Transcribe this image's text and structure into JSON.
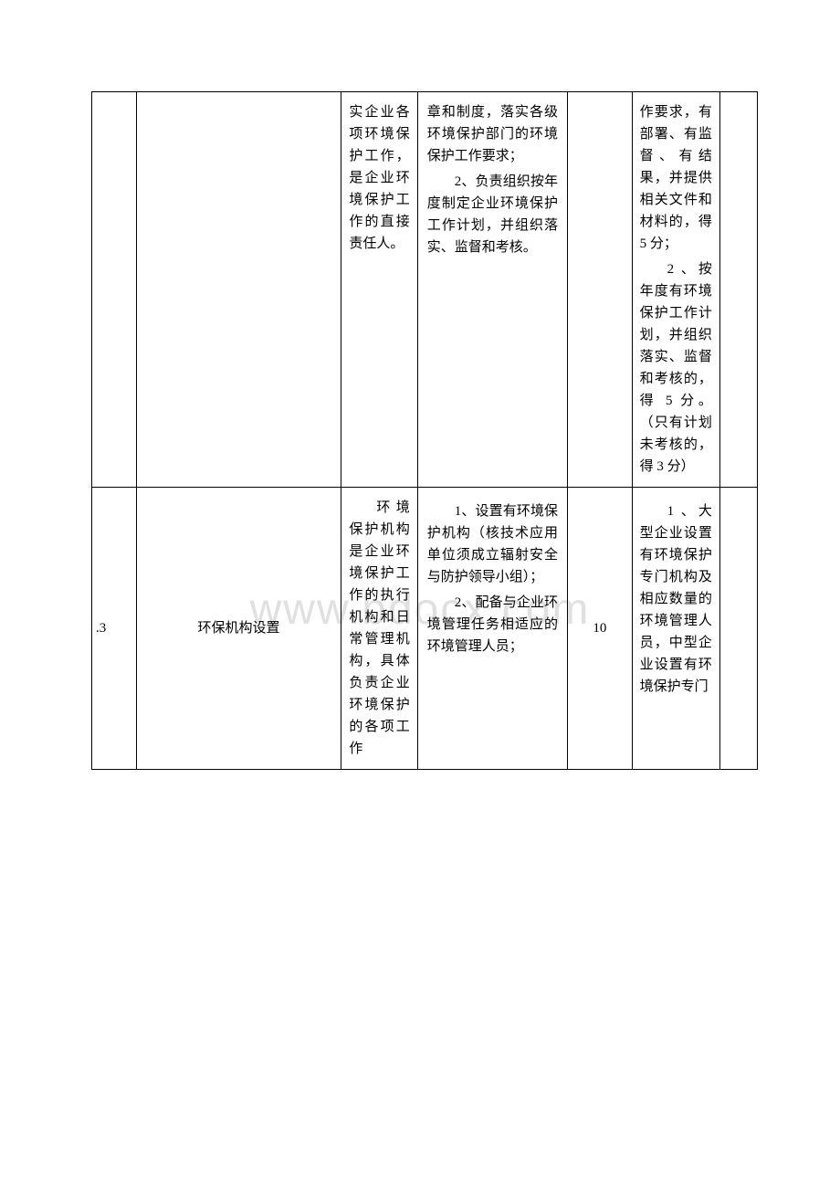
{
  "watermark": "www.bdocx.com",
  "table": {
    "border_color": "#000000",
    "background_color": "#ffffff",
    "text_color": "#000000",
    "font_size": 15,
    "columns_width": [
      38,
      175,
      65,
      128,
      55,
      75,
      32
    ],
    "rows": [
      {
        "col1": "",
        "col2": "",
        "col3": "实企业各项环境保护工作，是企业环境保护工作的直接责任人。",
        "col4_p1": "章和制度，落实各级环境保护部门的环境保护工作要求；",
        "col4_p2": "2、负责组织按年度制定企业环境保护工作计划，并组织落实、监督和考核。",
        "col5": "",
        "col6_p1": "作要求，有部署、有监督、有结果，并提供相关文件和材料的，得 5 分；",
        "col6_p2": "2 、按年度有环境保护工作计划，并组织落实、监督和考核的，得 5 分。（只有计划未考核的，得 3 分）",
        "col7": ""
      },
      {
        "col1": ".3",
        "col2": "环保机构设置",
        "col3": "环境保护机构是企业环境保护工作的执行机构和日常管理机构，具体负责企业环境保护的各项工作",
        "col4_p1": "1、设置有环境保护机构（核技术应用单位须成立辐射安全与防护领导小组）；",
        "col4_p2": "2、配备与企业环境管理任务相适应的环境管理人员；",
        "col5": "10",
        "col6_p1": "1 、大型企业设置有环境保护专门机构及相应数量的环境管理人员，中型企业设置有环境保护专门",
        "col7": ""
      }
    ]
  }
}
